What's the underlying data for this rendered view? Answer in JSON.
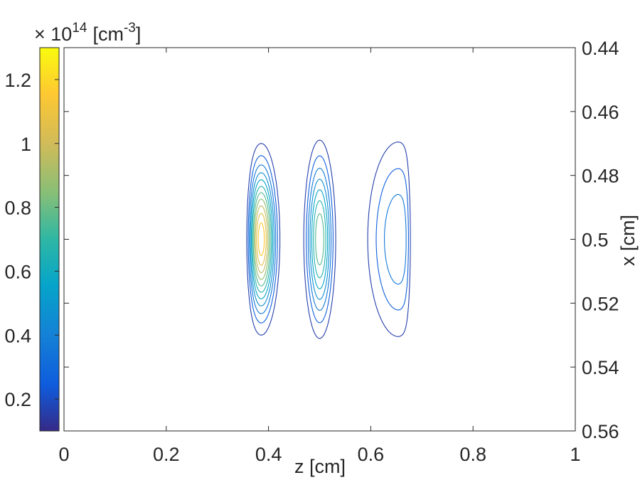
{
  "chart_data": {
    "type": "contour",
    "xlabel": "z [cm]",
    "ylabel": "x [cm]",
    "xlim": [
      0,
      1
    ],
    "ylim": [
      0.44,
      0.56
    ],
    "y_reversed": true,
    "y_axis_location": "right",
    "x_ticks": [
      "0",
      "0.2",
      "0.4",
      "0.6",
      "0.8",
      "1"
    ],
    "y_ticks": [
      "0.44",
      "0.46",
      "0.48",
      "0.5",
      "0.52",
      "0.54",
      "0.56"
    ],
    "colorbar": {
      "location": "left",
      "colormap": "parula",
      "range": [
        0.1,
        1.3
      ],
      "ticks": [
        "0.2",
        "0.4",
        "0.6",
        "0.8",
        "1",
        "1.2"
      ],
      "multiplier": "10",
      "exponent": "14",
      "unit_prefix": "[cm",
      "unit_exponent": "-3",
      "unit_suffix": "]"
    },
    "peaks": [
      {
        "z": 0.385,
        "x": 0.5,
        "value": 1.25
      },
      {
        "z": 0.5,
        "x": 0.5,
        "value": 0.85
      },
      {
        "z": 0.672,
        "x": 0.5,
        "value": 0.45
      }
    ],
    "contour_levels": [
      0.16,
      0.26,
      0.36,
      0.46,
      0.56,
      0.66,
      0.76,
      0.86,
      0.96,
      1.06,
      1.16
    ]
  }
}
